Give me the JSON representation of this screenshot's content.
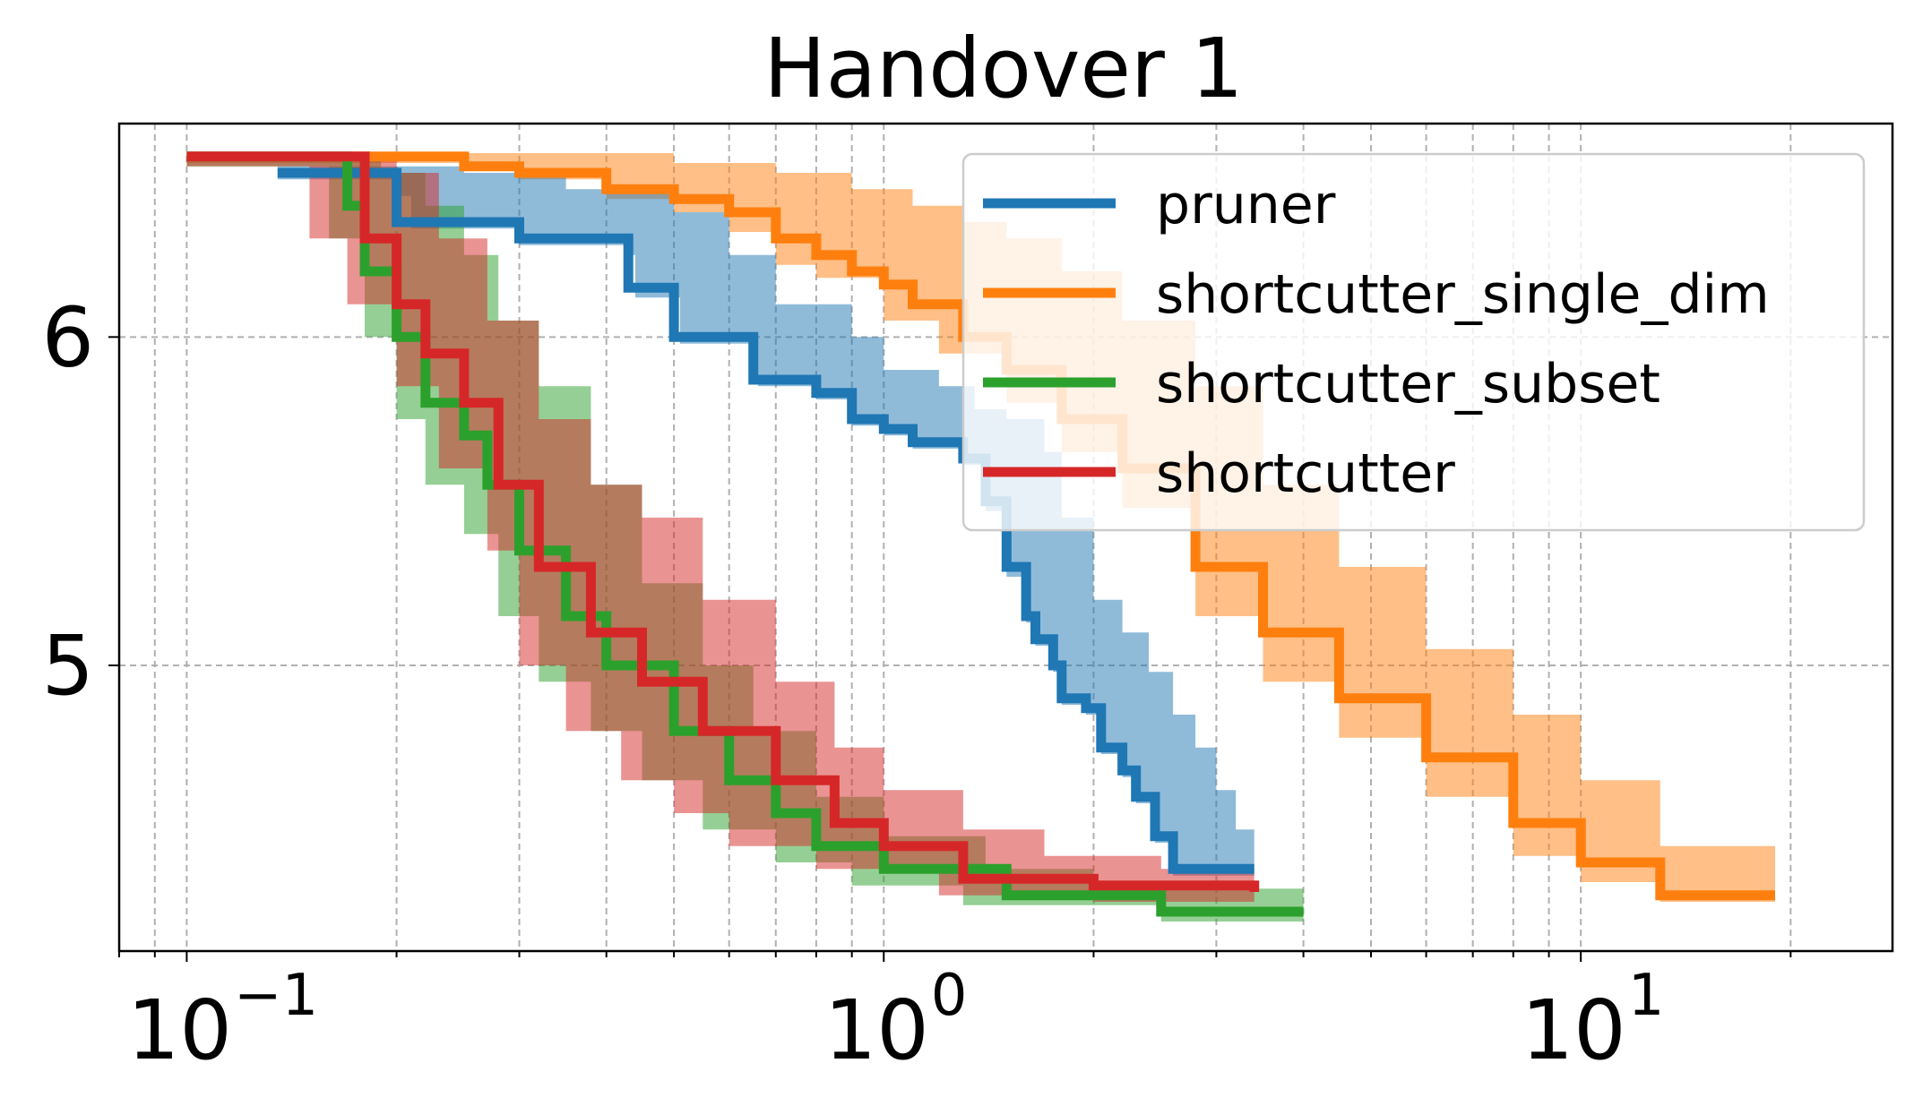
{
  "chart_data": {
    "type": "line",
    "title": "Handover 1",
    "xlabel": "",
    "ylabel": "",
    "x_scale": "log",
    "xlim": [
      0.08,
      28
    ],
    "ylim": [
      4.13,
      6.65
    ],
    "x_ticks": [
      {
        "value": 0.1,
        "base": "10",
        "exp": "−1"
      },
      {
        "value": 1,
        "base": "10",
        "exp": "0"
      },
      {
        "value": 10,
        "base": "10",
        "exp": "1"
      }
    ],
    "y_ticks": [
      {
        "value": 5,
        "label": "5"
      },
      {
        "value": 6,
        "label": "6"
      }
    ],
    "grid": true,
    "legend": {
      "placement": "top-right",
      "entries": [
        "pruner",
        "shortcutter_single_dim",
        "shortcutter_subset",
        "shortcutter"
      ]
    },
    "series": [
      {
        "name": "pruner",
        "color": "#1f77b4",
        "points": [
          [
            0.135,
            6.5
          ],
          [
            0.2,
            6.45
          ],
          [
            0.2,
            6.35
          ],
          [
            0.3,
            6.3
          ],
          [
            0.43,
            6.27
          ],
          [
            0.43,
            6.15
          ],
          [
            0.5,
            6.15
          ],
          [
            0.5,
            6.0
          ],
          [
            0.65,
            6.0
          ],
          [
            0.65,
            5.87
          ],
          [
            0.8,
            5.83
          ],
          [
            0.9,
            5.75
          ],
          [
            1.0,
            5.72
          ],
          [
            1.1,
            5.68
          ],
          [
            1.3,
            5.63
          ],
          [
            1.4,
            5.5
          ],
          [
            1.5,
            5.3
          ],
          [
            1.6,
            5.15
          ],
          [
            1.65,
            5.08
          ],
          [
            1.75,
            5.0
          ],
          [
            1.8,
            4.9
          ],
          [
            1.95,
            4.87
          ],
          [
            2.05,
            4.75
          ],
          [
            2.2,
            4.68
          ],
          [
            2.3,
            4.6
          ],
          [
            2.45,
            4.48
          ],
          [
            2.6,
            4.38
          ],
          [
            3.4,
            4.38
          ]
        ],
        "band_lower": [
          [
            0.135,
            6.48
          ],
          [
            0.2,
            6.43
          ],
          [
            0.21,
            6.33
          ],
          [
            0.3,
            6.28
          ],
          [
            0.43,
            6.25
          ],
          [
            0.44,
            6.12
          ],
          [
            0.5,
            6.12
          ],
          [
            0.51,
            5.98
          ],
          [
            0.65,
            5.98
          ],
          [
            0.66,
            5.85
          ],
          [
            0.8,
            5.81
          ],
          [
            0.9,
            5.73
          ],
          [
            1.0,
            5.7
          ],
          [
            1.1,
            5.66
          ],
          [
            1.3,
            5.61
          ],
          [
            1.4,
            5.47
          ],
          [
            1.5,
            5.27
          ],
          [
            1.6,
            5.13
          ],
          [
            1.65,
            5.06
          ],
          [
            1.75,
            4.98
          ],
          [
            1.8,
            4.88
          ],
          [
            1.95,
            4.85
          ],
          [
            2.05,
            4.73
          ],
          [
            2.2,
            4.66
          ],
          [
            2.3,
            4.58
          ],
          [
            2.45,
            4.46
          ],
          [
            2.6,
            4.36
          ],
          [
            3.4,
            4.36
          ]
        ],
        "band_upper": [
          [
            0.135,
            6.52
          ],
          [
            0.25,
            6.5
          ],
          [
            0.35,
            6.45
          ],
          [
            0.5,
            6.38
          ],
          [
            0.6,
            6.25
          ],
          [
            0.7,
            6.1
          ],
          [
            0.9,
            6.0
          ],
          [
            1.0,
            5.9
          ],
          [
            1.2,
            5.85
          ],
          [
            1.35,
            5.78
          ],
          [
            1.5,
            5.75
          ],
          [
            1.7,
            5.65
          ],
          [
            1.8,
            5.45
          ],
          [
            2.0,
            5.2
          ],
          [
            2.2,
            5.1
          ],
          [
            2.4,
            4.98
          ],
          [
            2.6,
            4.85
          ],
          [
            2.8,
            4.75
          ],
          [
            3.0,
            4.62
          ],
          [
            3.2,
            4.5
          ],
          [
            3.4,
            4.42
          ]
        ]
      },
      {
        "name": "shortcutter_single_dim",
        "color": "#ff7f0e",
        "points": [
          [
            0.1,
            6.55
          ],
          [
            0.2,
            6.55
          ],
          [
            0.25,
            6.52
          ],
          [
            0.3,
            6.5
          ],
          [
            0.4,
            6.45
          ],
          [
            0.5,
            6.42
          ],
          [
            0.6,
            6.38
          ],
          [
            0.7,
            6.3
          ],
          [
            0.8,
            6.25
          ],
          [
            0.9,
            6.2
          ],
          [
            1.0,
            6.16
          ],
          [
            1.1,
            6.1
          ],
          [
            1.3,
            6.0
          ],
          [
            1.5,
            5.9
          ],
          [
            1.8,
            5.75
          ],
          [
            2.2,
            5.6
          ],
          [
            2.8,
            5.3
          ],
          [
            3.5,
            5.1
          ],
          [
            4.5,
            4.9
          ],
          [
            6.0,
            4.72
          ],
          [
            8.0,
            4.52
          ],
          [
            10.0,
            4.4
          ],
          [
            13.0,
            4.3
          ],
          [
            19.0,
            4.3
          ]
        ],
        "band_lower": [
          [
            0.1,
            6.53
          ],
          [
            0.2,
            6.53
          ],
          [
            0.3,
            6.48
          ],
          [
            0.4,
            6.42
          ],
          [
            0.5,
            6.38
          ],
          [
            0.6,
            6.32
          ],
          [
            0.7,
            6.22
          ],
          [
            0.8,
            6.18
          ],
          [
            1.0,
            6.05
          ],
          [
            1.2,
            5.95
          ],
          [
            1.5,
            5.8
          ],
          [
            1.8,
            5.65
          ],
          [
            2.2,
            5.48
          ],
          [
            2.8,
            5.15
          ],
          [
            3.5,
            4.95
          ],
          [
            4.5,
            4.78
          ],
          [
            6.0,
            4.6
          ],
          [
            8.0,
            4.42
          ],
          [
            10.0,
            4.34
          ],
          [
            13.0,
            4.28
          ],
          [
            19.0,
            4.28
          ]
        ],
        "band_upper": [
          [
            0.1,
            6.56
          ],
          [
            0.3,
            6.56
          ],
          [
            0.5,
            6.53
          ],
          [
            0.7,
            6.5
          ],
          [
            0.9,
            6.45
          ],
          [
            1.1,
            6.4
          ],
          [
            1.3,
            6.35
          ],
          [
            1.5,
            6.3
          ],
          [
            1.8,
            6.2
          ],
          [
            2.2,
            6.05
          ],
          [
            2.8,
            5.85
          ],
          [
            3.5,
            5.55
          ],
          [
            4.5,
            5.3
          ],
          [
            6.0,
            5.05
          ],
          [
            8.0,
            4.85
          ],
          [
            10.0,
            4.65
          ],
          [
            13.0,
            4.45
          ],
          [
            19.0,
            4.32
          ]
        ]
      },
      {
        "name": "shortcutter_subset",
        "color": "#2ca02c",
        "points": [
          [
            0.1,
            6.55
          ],
          [
            0.16,
            6.55
          ],
          [
            0.17,
            6.4
          ],
          [
            0.18,
            6.2
          ],
          [
            0.2,
            6.0
          ],
          [
            0.22,
            5.8
          ],
          [
            0.25,
            5.7
          ],
          [
            0.27,
            5.55
          ],
          [
            0.3,
            5.35
          ],
          [
            0.35,
            5.15
          ],
          [
            0.4,
            5.0
          ],
          [
            0.5,
            4.8
          ],
          [
            0.6,
            4.65
          ],
          [
            0.7,
            4.55
          ],
          [
            0.8,
            4.45
          ],
          [
            1.0,
            4.38
          ],
          [
            1.5,
            4.3
          ],
          [
            2.5,
            4.25
          ],
          [
            4.0,
            4.25
          ]
        ],
        "band_lower": [
          [
            0.1,
            6.52
          ],
          [
            0.15,
            6.52
          ],
          [
            0.16,
            6.3
          ],
          [
            0.18,
            6.0
          ],
          [
            0.2,
            5.75
          ],
          [
            0.22,
            5.55
          ],
          [
            0.25,
            5.4
          ],
          [
            0.28,
            5.15
          ],
          [
            0.32,
            4.95
          ],
          [
            0.38,
            4.8
          ],
          [
            0.45,
            4.65
          ],
          [
            0.55,
            4.5
          ],
          [
            0.7,
            4.4
          ],
          [
            0.9,
            4.33
          ],
          [
            1.3,
            4.27
          ],
          [
            2.5,
            4.22
          ],
          [
            4.0,
            4.22
          ]
        ],
        "band_upper": [
          [
            0.1,
            6.56
          ],
          [
            0.17,
            6.56
          ],
          [
            0.19,
            6.5
          ],
          [
            0.22,
            6.4
          ],
          [
            0.25,
            6.25
          ],
          [
            0.28,
            6.05
          ],
          [
            0.32,
            5.85
          ],
          [
            0.38,
            5.55
          ],
          [
            0.45,
            5.25
          ],
          [
            0.55,
            5.0
          ],
          [
            0.65,
            4.8
          ],
          [
            0.8,
            4.6
          ],
          [
            1.0,
            4.48
          ],
          [
            1.4,
            4.38
          ],
          [
            2.0,
            4.32
          ],
          [
            4.0,
            4.27
          ]
        ]
      },
      {
        "name": "shortcutter",
        "color": "#d62728",
        "points": [
          [
            0.1,
            6.55
          ],
          [
            0.17,
            6.55
          ],
          [
            0.18,
            6.3
          ],
          [
            0.2,
            6.1
          ],
          [
            0.22,
            5.95
          ],
          [
            0.25,
            5.8
          ],
          [
            0.28,
            5.55
          ],
          [
            0.32,
            5.3
          ],
          [
            0.38,
            5.1
          ],
          [
            0.45,
            4.95
          ],
          [
            0.55,
            4.8
          ],
          [
            0.7,
            4.65
          ],
          [
            0.85,
            4.52
          ],
          [
            1.0,
            4.45
          ],
          [
            1.3,
            4.35
          ],
          [
            2.0,
            4.33
          ],
          [
            3.4,
            4.31
          ]
        ],
        "band_lower": [
          [
            0.1,
            6.52
          ],
          [
            0.14,
            6.52
          ],
          [
            0.15,
            6.3
          ],
          [
            0.17,
            6.1
          ],
          [
            0.2,
            5.85
          ],
          [
            0.23,
            5.6
          ],
          [
            0.27,
            5.35
          ],
          [
            0.3,
            5.0
          ],
          [
            0.35,
            4.8
          ],
          [
            0.42,
            4.65
          ],
          [
            0.5,
            4.55
          ],
          [
            0.6,
            4.45
          ],
          [
            0.8,
            4.38
          ],
          [
            1.2,
            4.3
          ],
          [
            2.0,
            4.28
          ],
          [
            3.4,
            4.28
          ]
        ],
        "band_upper": [
          [
            0.1,
            6.56
          ],
          [
            0.18,
            6.56
          ],
          [
            0.2,
            6.5
          ],
          [
            0.23,
            6.3
          ],
          [
            0.27,
            6.05
          ],
          [
            0.32,
            5.75
          ],
          [
            0.38,
            5.55
          ],
          [
            0.45,
            5.45
          ],
          [
            0.55,
            5.2
          ],
          [
            0.7,
            4.95
          ],
          [
            0.85,
            4.75
          ],
          [
            1.0,
            4.62
          ],
          [
            1.3,
            4.5
          ],
          [
            1.7,
            4.42
          ],
          [
            2.5,
            4.38
          ],
          [
            3.4,
            4.35
          ]
        ]
      }
    ]
  }
}
